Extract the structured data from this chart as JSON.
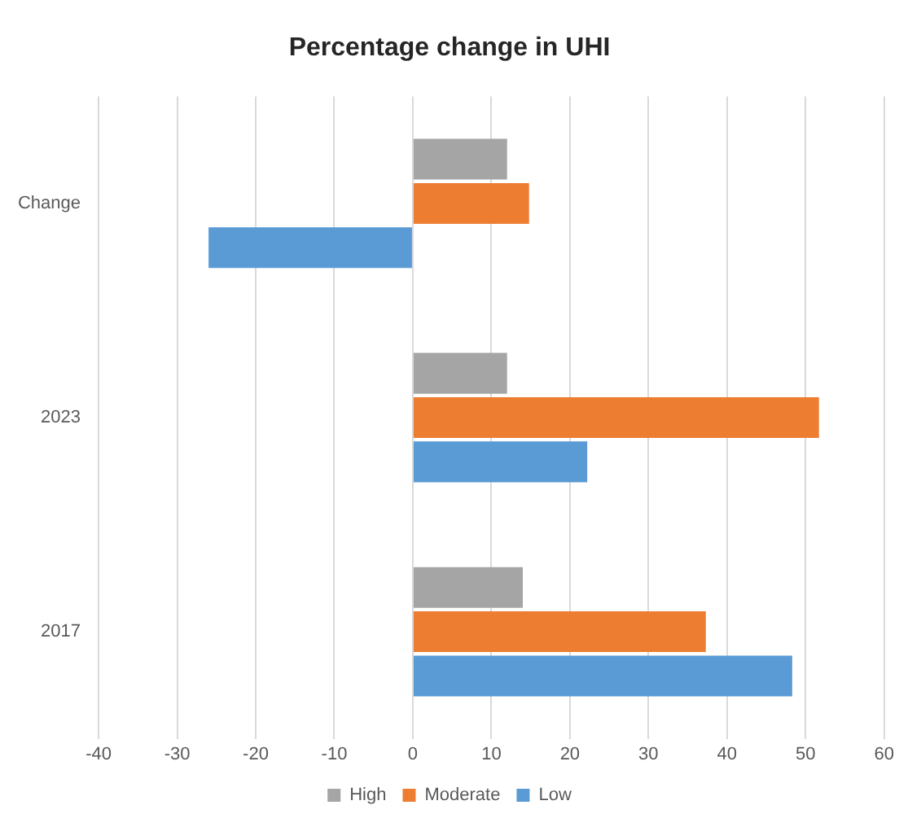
{
  "chart_data": {
    "type": "bar",
    "orientation": "horizontal",
    "title": "Percentage change in UHI",
    "categories": [
      "Change",
      "2023",
      "2017"
    ],
    "series": [
      {
        "name": "High",
        "color": "#a5a5a5",
        "values": [
          12,
          12,
          14
        ]
      },
      {
        "name": "Moderate",
        "color": "#ed7d31",
        "values": [
          14.8,
          51.7,
          37.3
        ]
      },
      {
        "name": "Low",
        "color": "#5b9bd5",
        "values": [
          -26,
          22.2,
          48.3
        ]
      }
    ],
    "xlim": [
      -40,
      60
    ],
    "xticks": [
      -40,
      -30,
      -20,
      -10,
      0,
      10,
      20,
      30,
      40,
      50,
      60
    ],
    "grid": "x",
    "legend": "bottom"
  }
}
